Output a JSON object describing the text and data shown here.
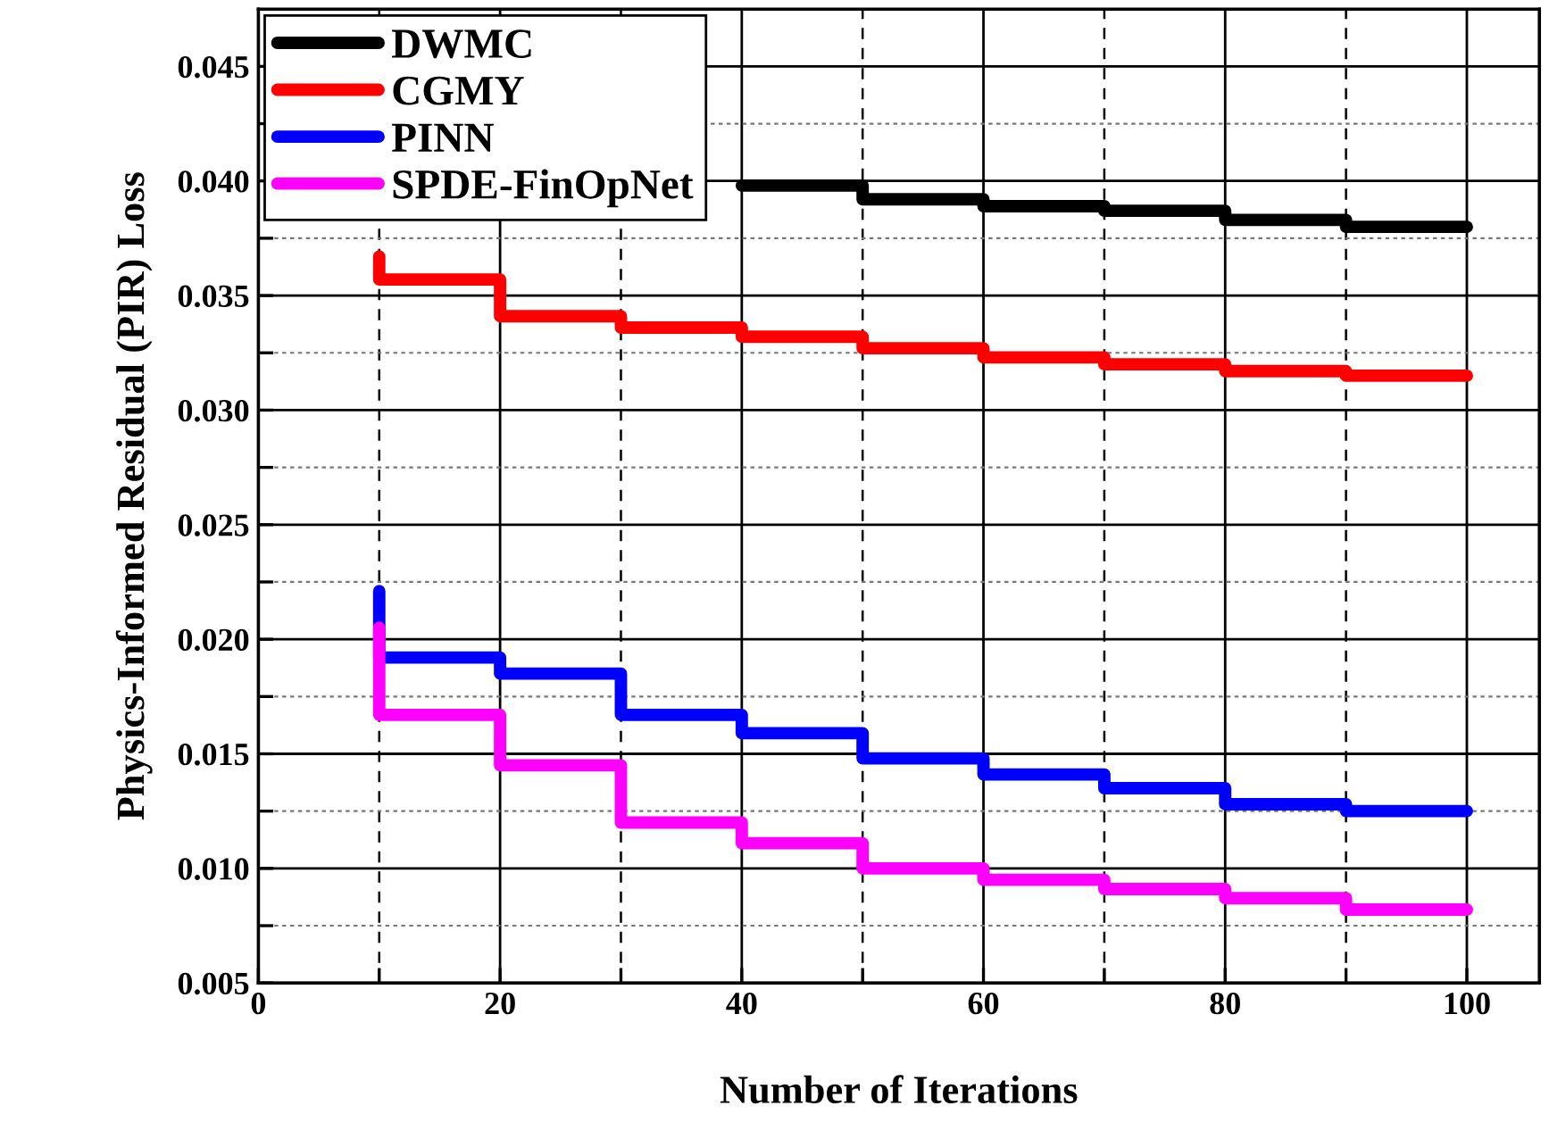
{
  "chart_data": {
    "type": "step",
    "xlabel": "Number of Iterations",
    "ylabel": "Physics-Informed Residual (PIR) Loss",
    "x": [
      10,
      20,
      30,
      40,
      50,
      60,
      70,
      80,
      90,
      100
    ],
    "series": [
      {
        "name": "DWMC",
        "color": "#000000",
        "x": [
          40,
          50,
          60,
          70,
          80,
          90,
          100
        ],
        "values": [
          0.0398,
          0.0398,
          0.0392,
          0.0389,
          0.0387,
          0.0383,
          0.038
        ]
      },
      {
        "name": "CGMY",
        "color": "#ff0000",
        "values": [
          0.0367,
          0.0357,
          0.0341,
          0.0336,
          0.0332,
          0.0327,
          0.0323,
          0.032,
          0.0317,
          0.0315
        ]
      },
      {
        "name": "PINN",
        "color": "#0000ff",
        "values": [
          0.0221,
          0.0192,
          0.0185,
          0.0167,
          0.0159,
          0.0148,
          0.0141,
          0.0135,
          0.0128,
          0.0125
        ]
      },
      {
        "name": "SPDE-FinOpNet",
        "color": "#ff00ff",
        "values": [
          0.0205,
          0.0167,
          0.0145,
          0.012,
          0.0111,
          0.01,
          0.0095,
          0.0091,
          0.0087,
          0.0082
        ]
      }
    ],
    "xlim": [
      0,
      106
    ],
    "ylim": [
      0.005,
      0.0475
    ],
    "xticks": [
      0,
      {
        "value": 10,
        "label": null
      },
      20,
      {
        "value": 30,
        "label": null
      },
      40,
      {
        "value": 50,
        "label": null
      },
      60,
      {
        "value": 70,
        "label": null
      },
      80,
      {
        "value": 90,
        "label": null
      },
      100
    ],
    "yticks": [
      0.005,
      {
        "value": 0.0075,
        "label": null
      },
      {
        "value": 0.01,
        "label": "0.010"
      },
      {
        "value": 0.0125,
        "label": null
      },
      0.015,
      {
        "value": 0.0175,
        "label": null
      },
      {
        "value": 0.02,
        "label": "0.020"
      },
      {
        "value": 0.0225,
        "label": null
      },
      0.025,
      {
        "value": 0.0275,
        "label": null
      },
      {
        "value": 0.03,
        "label": "0.030"
      },
      {
        "value": 0.0325,
        "label": null
      },
      0.035,
      {
        "value": 0.0375,
        "label": null
      },
      {
        "value": 0.04,
        "label": "0.040"
      },
      {
        "value": 0.0425,
        "label": null
      },
      0.045
    ],
    "grid": true,
    "legend": "top left",
    "line_style": "solid",
    "marker": "none"
  }
}
